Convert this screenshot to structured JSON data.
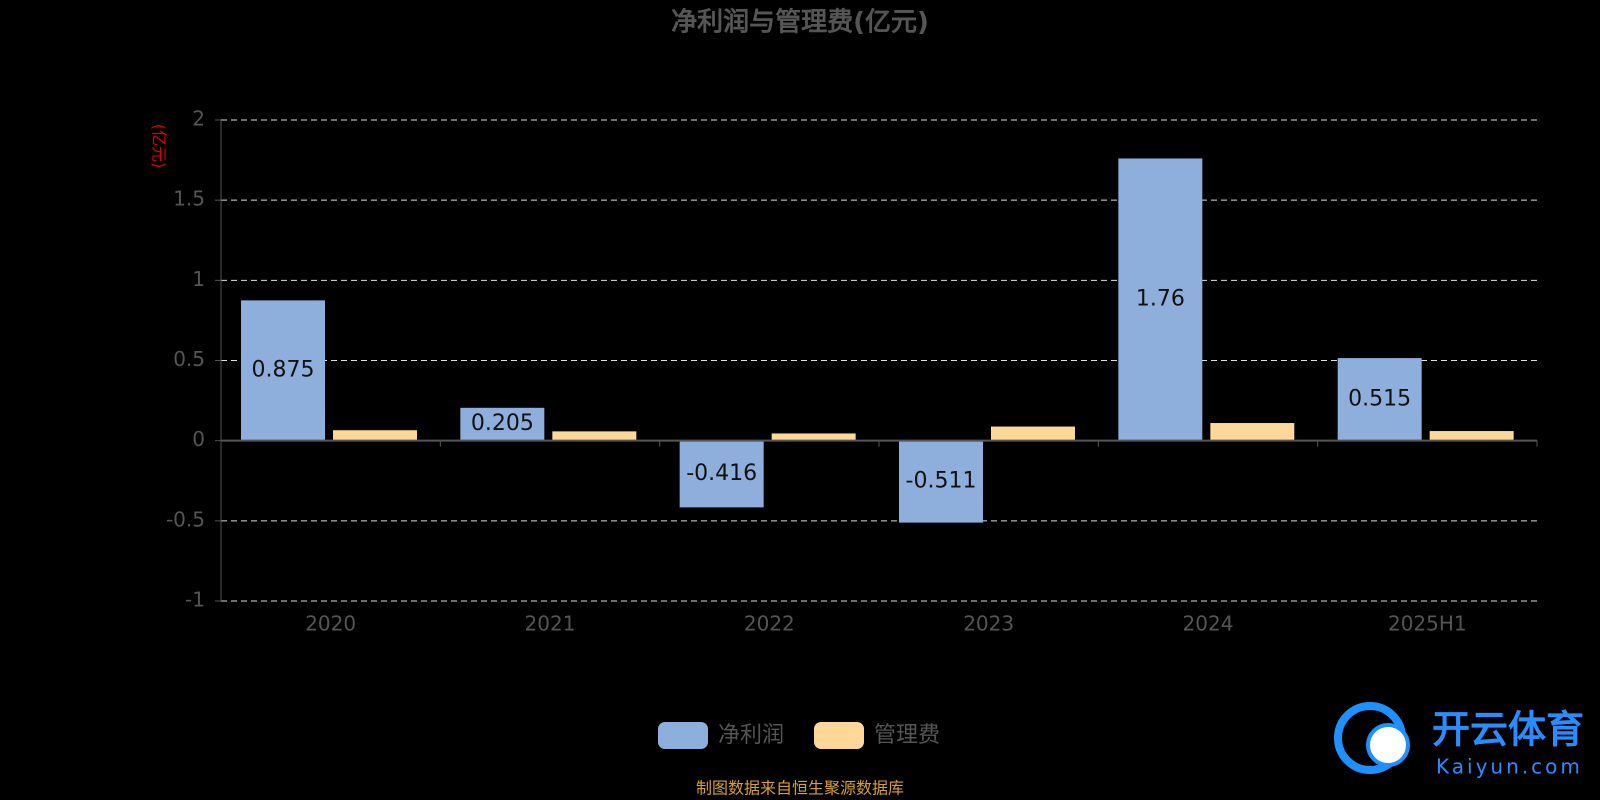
{
  "chart_data": {
    "type": "bar",
    "title": "净利润与管理费(亿元)",
    "y_label": "(亿元)",
    "categories": [
      "2020",
      "2021",
      "2022",
      "2023",
      "2024",
      "2025H1"
    ],
    "series": [
      {
        "name": "净利润",
        "color": "#8eaedc",
        "values": [
          0.875,
          0.205,
          -0.416,
          -0.511,
          1.76,
          0.515
        ],
        "show_labels": true
      },
      {
        "name": "管理费",
        "color": "#fdd898",
        "values": [
          0.065,
          0.058,
          0.045,
          0.088,
          0.11,
          0.06
        ],
        "show_labels": false
      }
    ],
    "ylim": [
      -1,
      2
    ],
    "yticks": [
      2,
      1.5,
      1,
      0.5,
      0,
      -0.5,
      -1
    ],
    "grid": true,
    "source": "制图数据来自恒生聚源数据库"
  },
  "watermark": {
    "name": "开云体育",
    "site": "Kaiyun.com"
  }
}
